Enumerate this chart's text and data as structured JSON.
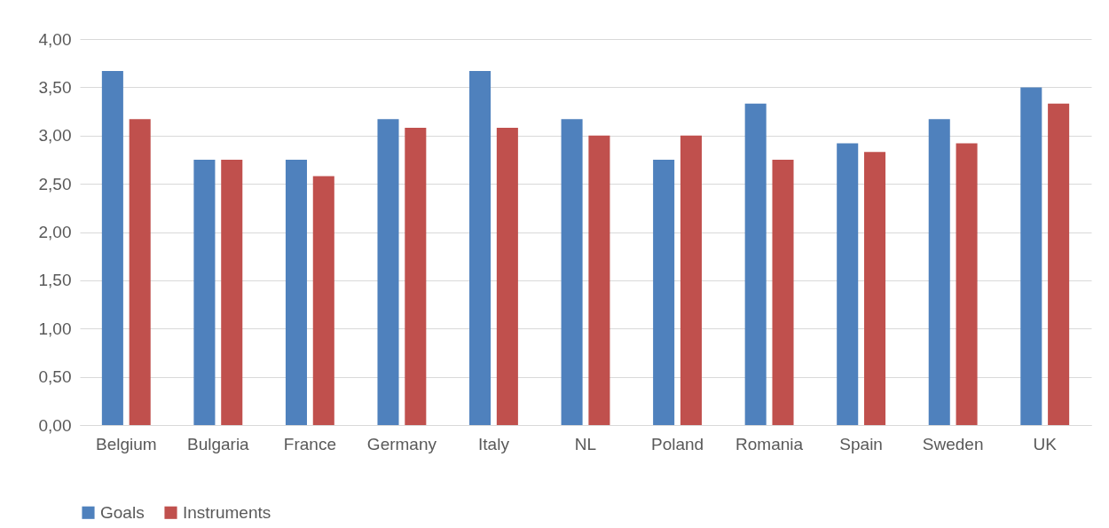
{
  "chart_data": {
    "type": "bar",
    "categories": [
      "Belgium",
      "Bulgaria",
      "France",
      "Germany",
      "Italy",
      "NL",
      "Poland",
      "Romania",
      "Spain",
      "Sweden",
      "UK"
    ],
    "series": [
      {
        "name": "Goals",
        "color": "#4f81bd",
        "values": [
          3.67,
          2.75,
          2.75,
          3.17,
          3.67,
          3.17,
          2.75,
          3.33,
          2.92,
          3.17,
          3.5
        ]
      },
      {
        "name": "Instruments",
        "color": "#c0504d",
        "values": [
          3.17,
          2.75,
          2.58,
          3.08,
          3.08,
          3.0,
          3.0,
          2.75,
          2.83,
          2.92,
          3.33
        ]
      }
    ],
    "ylim": [
      0,
      4
    ],
    "yticks": [
      {
        "value": 0,
        "label": "0,00"
      },
      {
        "value": 0.5,
        "label": "0,50"
      },
      {
        "value": 1,
        "label": "1,00"
      },
      {
        "value": 1.5,
        "label": "1,50"
      },
      {
        "value": 2,
        "label": "2,00"
      },
      {
        "value": 2.5,
        "label": "2,50"
      },
      {
        "value": 3,
        "label": "3,00"
      },
      {
        "value": 3.5,
        "label": "3,50"
      },
      {
        "value": 4,
        "label": "4,00"
      }
    ],
    "grid": "y",
    "legend": "bottom"
  }
}
